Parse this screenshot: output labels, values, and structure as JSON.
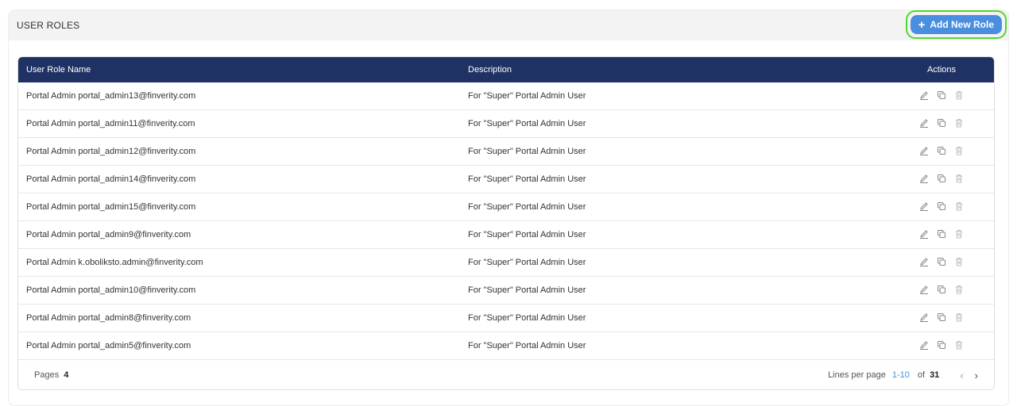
{
  "header": {
    "title": "USER ROLES",
    "add_button": "Add New Role"
  },
  "table": {
    "columns": [
      "User Role Name",
      "Description",
      "Actions"
    ],
    "rows": [
      {
        "name": "Portal Admin portal_admin13@finverity.com",
        "description": "For \"Super\" Portal Admin User"
      },
      {
        "name": "Portal Admin portal_admin11@finverity.com",
        "description": "For \"Super\" Portal Admin User"
      },
      {
        "name": "Portal Admin portal_admin12@finverity.com",
        "description": "For \"Super\" Portal Admin User"
      },
      {
        "name": "Portal Admin portal_admin14@finverity.com",
        "description": "For \"Super\" Portal Admin User"
      },
      {
        "name": "Portal Admin portal_admin15@finverity.com",
        "description": "For \"Super\" Portal Admin User"
      },
      {
        "name": "Portal Admin portal_admin9@finverity.com",
        "description": "For \"Super\" Portal Admin User"
      },
      {
        "name": "Portal Admin k.oboliksto.admin@finverity.com",
        "description": "For \"Super\" Portal Admin User"
      },
      {
        "name": "Portal Admin portal_admin10@finverity.com",
        "description": "For \"Super\" Portal Admin User"
      },
      {
        "name": "Portal Admin portal_admin8@finverity.com",
        "description": "For \"Super\" Portal Admin User"
      },
      {
        "name": "Portal Admin portal_admin5@finverity.com",
        "description": "For \"Super\" Portal Admin User"
      }
    ]
  },
  "footer": {
    "pages_label": "Pages",
    "pages": "4",
    "lines_label": "Lines per page",
    "range": "1-10",
    "of_label": "of",
    "total": "31"
  },
  "colors": {
    "header": "#1f3264",
    "accent": "#4a8ee0",
    "highlight": "#4fd92a"
  }
}
